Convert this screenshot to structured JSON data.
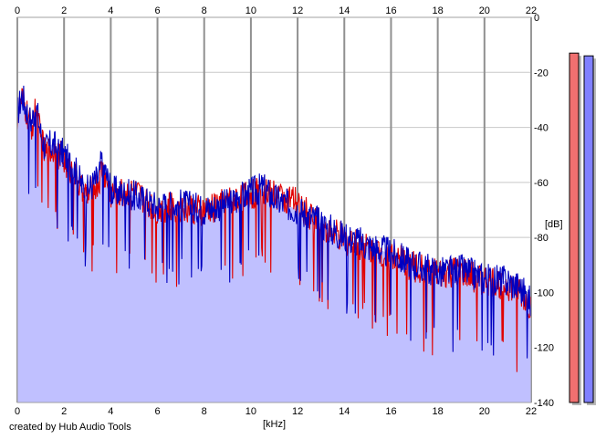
{
  "chart_data": {
    "type": "area",
    "xlabel": "[kHz]",
    "ylabel": "[dB]",
    "xlim": [
      0,
      22
    ],
    "ylim": [
      -140,
      0
    ],
    "xticks": [
      0,
      2,
      4,
      6,
      8,
      10,
      12,
      14,
      16,
      18,
      20,
      22
    ],
    "yticks": [
      0,
      -20,
      -40,
      -60,
      -80,
      -100,
      -120,
      -140
    ],
    "grid": true,
    "series": [
      {
        "color": "#0000c0",
        "fill": "#c0c0ff",
        "x": [
          0,
          0.2,
          0.4,
          0.6,
          0.8,
          1.0,
          1.2,
          1.5,
          2.0,
          2.5,
          2.8,
          3.0,
          3.5,
          3.6,
          3.8,
          4.0,
          5.0,
          6.0,
          7.0,
          8.0,
          9.0,
          10.0,
          10.5,
          11.0,
          12.0,
          13.0,
          14.0,
          15.0,
          16.0,
          17.0,
          18.0,
          19.0,
          20.0,
          21.0,
          21.5,
          22.0
        ],
        "values": [
          -35,
          -28,
          -34,
          -38,
          -32,
          -42,
          -48,
          -46,
          -50,
          -56,
          -62,
          -63,
          -58,
          -52,
          -57,
          -63,
          -65,
          -69,
          -68,
          -70,
          -68,
          -64,
          -62,
          -66,
          -70,
          -75,
          -80,
          -83,
          -86,
          -90,
          -93,
          -92,
          -95,
          -96,
          -98,
          -104
        ]
      },
      {
        "color": "#e00000",
        "x": [
          0,
          0.2,
          0.4,
          0.6,
          0.8,
          1.0,
          1.2,
          1.5,
          2.0,
          2.5,
          2.8,
          3.0,
          3.5,
          3.6,
          3.8,
          4.0,
          5.0,
          6.0,
          7.0,
          8.0,
          9.0,
          10.0,
          10.5,
          11.0,
          12.0,
          13.0,
          14.0,
          15.0,
          16.0,
          17.0,
          18.0,
          19.0,
          20.0,
          21.0,
          21.5,
          22.0
        ],
        "values": [
          -36,
          -30,
          -35,
          -40,
          -34,
          -44,
          -50,
          -48,
          -52,
          -58,
          -64,
          -65,
          -60,
          -55,
          -59,
          -64,
          -64,
          -70,
          -69,
          -71,
          -67,
          -65,
          -63,
          -64,
          -68,
          -76,
          -81,
          -84,
          -87,
          -91,
          -94,
          -93,
          -96,
          -98,
          -100,
          -106
        ]
      }
    ],
    "meters": [
      {
        "color": "#f07070",
        "level": -13
      },
      {
        "color": "#8080ff",
        "level": -14
      }
    ]
  },
  "credit": "created by Hub Audio Tools"
}
